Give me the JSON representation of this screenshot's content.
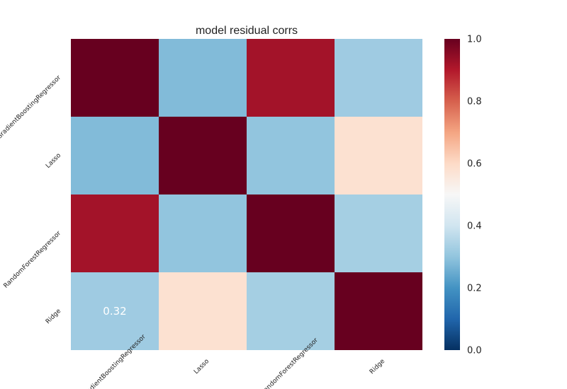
{
  "chart_data": {
    "type": "heatmap",
    "title": "model residual corrs",
    "row_labels": [
      "GradientBoostingRegressor",
      "Lasso",
      "RandomForestRegressor",
      "Ridge"
    ],
    "col_labels": [
      "GradientBoostingRegressor",
      "Lasso",
      "RandomForestRegressor",
      "Ridge"
    ],
    "values": [
      [
        1.0,
        0.28,
        0.92,
        0.32
      ],
      [
        0.28,
        1.0,
        0.3,
        0.58
      ],
      [
        0.92,
        0.3,
        1.0,
        0.33
      ],
      [
        0.32,
        0.58,
        0.33,
        1.0
      ]
    ],
    "annotations": [
      {
        "row": 3,
        "col": 0,
        "text": "0.32"
      }
    ],
    "colormap": "RdBu_r",
    "vmin": 0.0,
    "vmax": 1.0,
    "colorbar_ticks": [
      "0.0",
      "0.2",
      "0.4",
      "0.6",
      "0.8",
      "1.0"
    ],
    "colorbar_tick_values": [
      0.0,
      0.2,
      0.4,
      0.6,
      0.8,
      1.0
    ],
    "grid": false,
    "legend": "colorbar-right"
  }
}
